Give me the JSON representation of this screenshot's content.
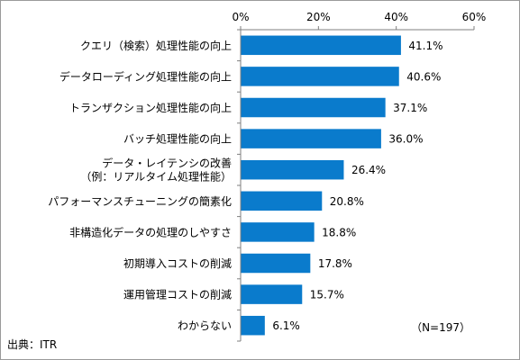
{
  "chart_data": {
    "type": "bar",
    "orientation": "horizontal",
    "categories": [
      [
        "クエリ（検索）処理性能の向上"
      ],
      [
        "データローディング処理性能の向上"
      ],
      [
        "トランザクション処理性能の向上"
      ],
      [
        "バッチ処理性能の向上"
      ],
      [
        "データ・レイテンシの改善",
        "（例：リアルタイム処理性能）"
      ],
      [
        "パフォーマンスチューニングの簡素化"
      ],
      [
        "非構造化データの処理のしやすさ"
      ],
      [
        "初期導入コストの削減"
      ],
      [
        "運用管理コストの削減"
      ],
      [
        "わからない"
      ]
    ],
    "values": [
      41.1,
      40.6,
      37.1,
      36.0,
      26.4,
      20.8,
      18.8,
      17.8,
      15.7,
      6.1
    ],
    "value_labels": [
      "41.1%",
      "40.6%",
      "37.1%",
      "36.0%",
      "26.4%",
      "20.8%",
      "18.8%",
      "17.8%",
      "15.7%",
      "6.1%"
    ],
    "xlim": [
      0,
      60
    ],
    "x_ticks": [
      0,
      20,
      40,
      60
    ],
    "x_tick_labels": [
      "0%",
      "20%",
      "40%",
      "60%"
    ],
    "axis_position": "top",
    "grid": false,
    "bar_color": "#0a7bcc"
  },
  "annotations": {
    "sample_size": "（N=197）",
    "source": "出典：ITR"
  }
}
